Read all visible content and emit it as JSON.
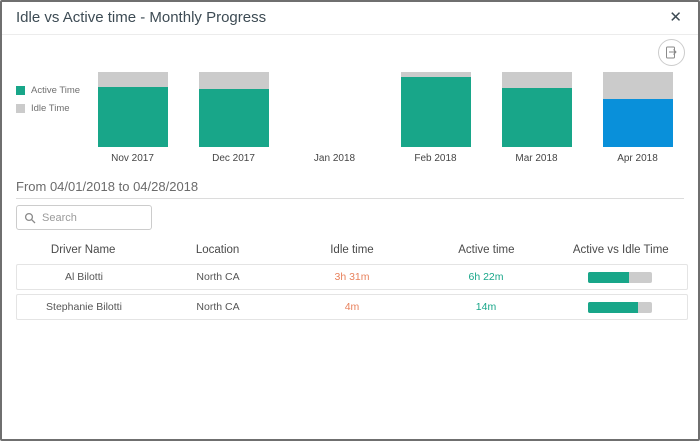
{
  "dialog": {
    "title": "Idle vs Active time - Monthly Progress",
    "close_label": "✕"
  },
  "toolbar": {
    "export_icon": "export-report-icon"
  },
  "chart_data": {
    "type": "bar",
    "subtype": "stacked-percent",
    "categories": [
      "Nov 2017",
      "Dec 2017",
      "Jan 2018",
      "Feb 2018",
      "Mar 2018",
      "Apr 2018"
    ],
    "series": [
      {
        "name": "Active Time",
        "color": "#18a689",
        "values": [
          80,
          77,
          null,
          93,
          79,
          64
        ]
      },
      {
        "name": "Idle Time",
        "color": "#cbcbcb",
        "values": [
          20,
          23,
          null,
          7,
          21,
          36
        ]
      }
    ],
    "selected_category": "Apr 2018",
    "selected_color": "#0990da",
    "legend_position": "left",
    "ylim": [
      0,
      100
    ],
    "grid": false,
    "title": "Idle vs Active time - Monthly Progress"
  },
  "filter": {
    "date_range": "From 04/01/2018 to 04/28/2018"
  },
  "search": {
    "placeholder": "Search",
    "value": ""
  },
  "table": {
    "columns": [
      "Driver Name",
      "Location",
      "Idle time",
      "Active time",
      "Active vs Idle Time"
    ],
    "rows": [
      {
        "driver": "Al Bilotti",
        "location": "North CA",
        "idle": "3h 31m",
        "active": "6h 22m",
        "active_pct": 64
      },
      {
        "driver": "Stephanie Bilotti",
        "location": "North CA",
        "idle": "4m",
        "active": "14m",
        "active_pct": 78
      }
    ]
  },
  "colors": {
    "active": "#18a689",
    "idle_bar": "#cbcbcb",
    "selected_blue": "#0990da",
    "idle_text": "#e8825d"
  }
}
